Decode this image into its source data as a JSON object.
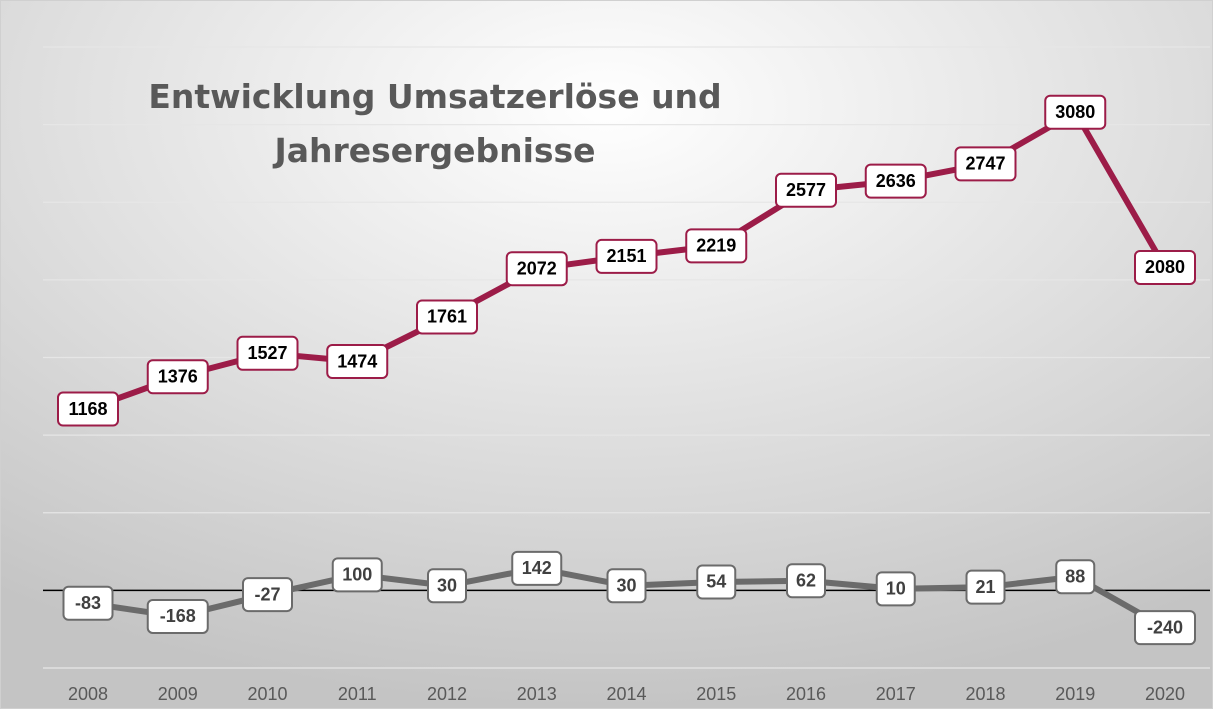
{
  "chart_data": {
    "type": "line",
    "title": "Entwicklung Umsatzerlöse und Jahresergebnisse",
    "categories": [
      "2008",
      "2009",
      "2010",
      "2011",
      "2012",
      "2013",
      "2014",
      "2015",
      "2016",
      "2017",
      "2018",
      "2019",
      "2020"
    ],
    "series": [
      {
        "color": "#9c1c48",
        "values": [
          1168,
          1376,
          1527,
          1474,
          1761,
          2072,
          2151,
          2219,
          2577,
          2636,
          2747,
          3080,
          2080
        ]
      },
      {
        "color": "#6b6b6b",
        "values": [
          -83,
          -168,
          -27,
          100,
          30,
          142,
          30,
          54,
          62,
          10,
          21,
          88,
          -240
        ]
      }
    ],
    "ylim": [
      -500,
      3500
    ],
    "yticks": [
      -500,
      0,
      500,
      1000,
      1500,
      2000,
      2500,
      3000,
      3500
    ],
    "grid": true
  }
}
